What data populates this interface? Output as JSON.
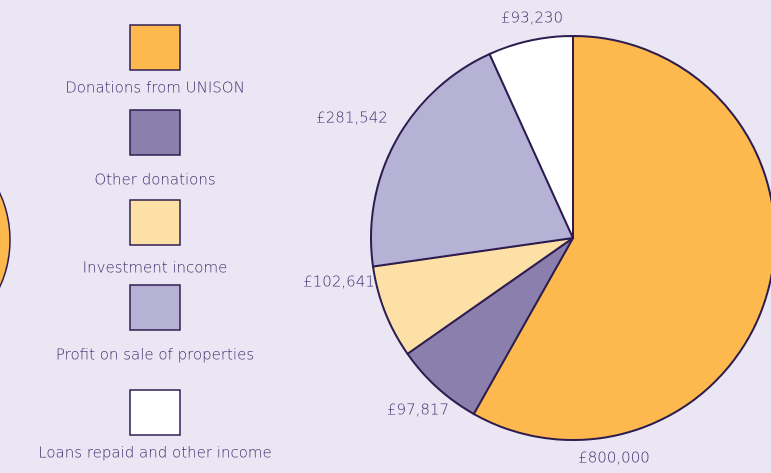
{
  "chart_data": {
    "type": "pie",
    "categories": [
      "Donations from UNISON",
      "Other donations",
      "Investment income",
      "Profit on sale of properties",
      "Loans repaid and other income"
    ],
    "values": [
      800000,
      97817,
      102641,
      281542,
      93230
    ],
    "value_labels": [
      "£800,000",
      "£97,817",
      "£102,641",
      "£281,542",
      "£93,230"
    ],
    "colors": [
      "#fdb94d",
      "#8a7fad",
      "#fde0a6",
      "#b6b2d6",
      "#ffffff"
    ]
  }
}
